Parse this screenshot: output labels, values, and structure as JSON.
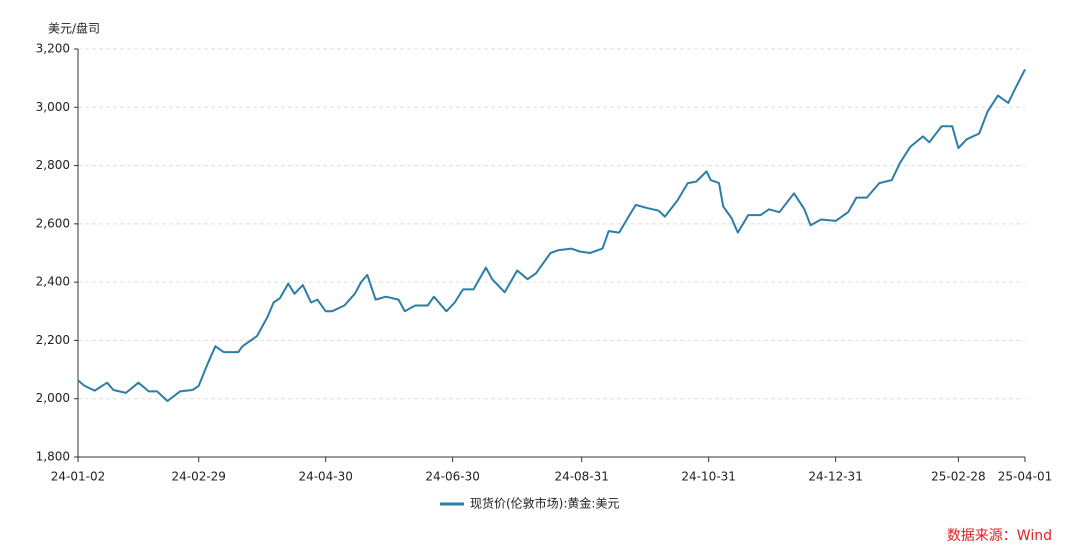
{
  "chart_data": {
    "type": "line",
    "y_label": "美元/盘司",
    "source": "数据来源：Wind",
    "x": [
      "24-01-02",
      "24-01-05",
      "24-01-10",
      "24-01-16",
      "24-01-19",
      "24-01-25",
      "24-01-31",
      "24-02-05",
      "24-02-09",
      "24-02-14",
      "24-02-20",
      "24-02-26",
      "24-02-29",
      "24-03-04",
      "24-03-08",
      "24-03-12",
      "24-03-19",
      "24-03-21",
      "24-03-28",
      "24-04-02",
      "24-04-05",
      "24-04-08",
      "24-04-12",
      "24-04-15",
      "24-04-19",
      "24-04-23",
      "24-04-26",
      "24-04-30",
      "24-05-03",
      "24-05-09",
      "24-05-14",
      "24-05-17",
      "24-05-20",
      "24-05-24",
      "24-05-29",
      "24-06-04",
      "24-06-07",
      "24-06-12",
      "24-06-18",
      "24-06-21",
      "24-06-27",
      "24-07-01",
      "24-07-05",
      "24-07-10",
      "24-07-16",
      "24-07-19",
      "24-07-25",
      "24-07-31",
      "24-08-05",
      "24-08-09",
      "24-08-16",
      "24-08-20",
      "24-08-26",
      "24-08-30",
      "24-09-04",
      "24-09-10",
      "24-09-13",
      "24-09-18",
      "24-09-23",
      "24-09-26",
      "24-10-01",
      "24-10-07",
      "24-10-10",
      "24-10-16",
      "24-10-21",
      "24-10-25",
      "24-10-30",
      "24-11-01",
      "24-11-05",
      "24-11-07",
      "24-11-11",
      "24-11-14",
      "24-11-19",
      "24-11-25",
      "24-11-29",
      "24-12-04",
      "24-12-11",
      "24-12-16",
      "24-12-19",
      "24-12-24",
      "24-12-31",
      "25-01-06",
      "25-01-10",
      "25-01-15",
      "25-01-21",
      "25-01-27",
      "25-01-31",
      "25-02-05",
      "25-02-11",
      "25-02-14",
      "25-02-20",
      "25-02-25",
      "25-02-28",
      "25-03-04",
      "25-03-10",
      "25-03-14",
      "25-03-19",
      "25-03-24",
      "25-03-27",
      "25-04-01"
    ],
    "series": [
      {
        "name": "现货价(伦敦市场):黄金:美元",
        "color": "#2b7ea6",
        "values": [
          2063,
          2045,
          2028,
          2055,
          2030,
          2020,
          2055,
          2025,
          2025,
          1992,
          2025,
          2030,
          2044,
          2115,
          2180,
          2160,
          2160,
          2180,
          2215,
          2280,
          2330,
          2345,
          2395,
          2360,
          2390,
          2330,
          2340,
          2300,
          2300,
          2320,
          2360,
          2400,
          2425,
          2340,
          2350,
          2340,
          2300,
          2320,
          2320,
          2350,
          2300,
          2330,
          2375,
          2375,
          2450,
          2410,
          2365,
          2440,
          2410,
          2430,
          2500,
          2510,
          2515,
          2505,
          2500,
          2515,
          2575,
          2570,
          2630,
          2665,
          2655,
          2645,
          2625,
          2680,
          2740,
          2745,
          2780,
          2750,
          2740,
          2660,
          2620,
          2570,
          2630,
          2630,
          2650,
          2640,
          2705,
          2650,
          2595,
          2615,
          2610,
          2640,
          2690,
          2690,
          2740,
          2750,
          2810,
          2865,
          2900,
          2880,
          2935,
          2935,
          2860,
          2890,
          2910,
          2985,
          3040,
          3015,
          3060,
          3130
        ]
      }
    ],
    "xlim": [
      "24-01-02",
      "25-04-01"
    ],
    "xticks": [
      "24-01-02",
      "24-02-29",
      "24-04-30",
      "24-06-30",
      "24-08-31",
      "24-10-31",
      "24-12-31",
      "25-02-28",
      "25-04-01"
    ],
    "ylim": [
      1800,
      3200
    ],
    "yticks": [
      {
        "value": 1800,
        "label": "1,800"
      },
      {
        "value": 2000,
        "label": "2,000"
      },
      {
        "value": 2200,
        "label": "2,200"
      },
      {
        "value": 2400,
        "label": "2,400"
      },
      {
        "value": 2600,
        "label": "2,600"
      },
      {
        "value": 2800,
        "label": "2,800"
      },
      {
        "value": 3000,
        "label": "3,000"
      },
      {
        "value": 3200,
        "label": "3,200"
      }
    ],
    "grid": true
  }
}
